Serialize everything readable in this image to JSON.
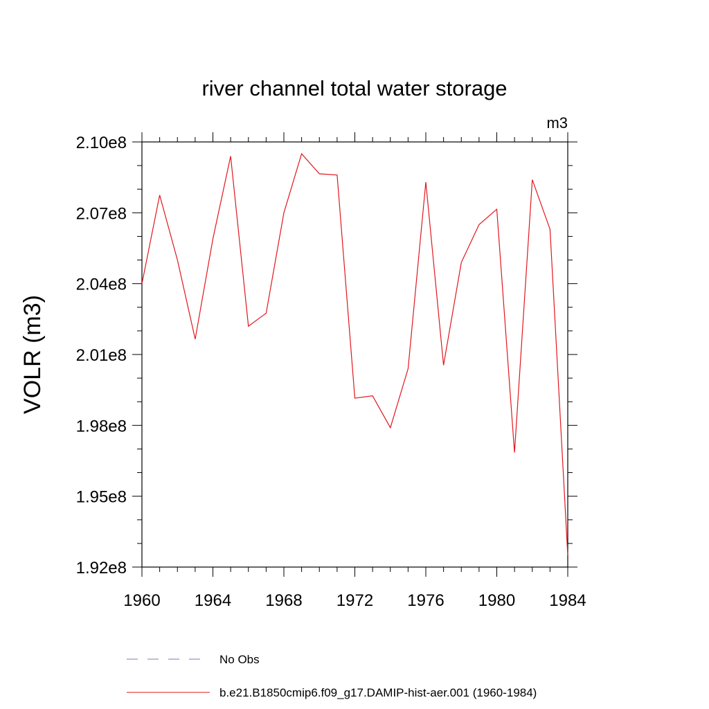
{
  "chart_data": {
    "type": "line",
    "title": "river channel total water storage",
    "units": "m3",
    "ylabel": "VOLR  (m3)",
    "xlim": [
      1960,
      1984
    ],
    "ylim": [
      192000000,
      210000000
    ],
    "x_ticks": [
      1960,
      1964,
      1968,
      1972,
      1976,
      1980,
      1984
    ],
    "x_tick_labels": [
      "1960",
      "1964",
      "1968",
      "1972",
      "1976",
      "1980",
      "1984"
    ],
    "y_ticks": [
      192000000,
      195000000,
      198000000,
      201000000,
      204000000,
      207000000,
      210000000
    ],
    "y_tick_labels": [
      "1.92e8",
      "1.95e8",
      "1.98e8",
      "2.01e8",
      "2.04e8",
      "2.07e8",
      "2.10e8"
    ],
    "grid": false,
    "legend_position": "bottom",
    "series": [
      {
        "name": "b.e21.B1850cmip6.f09_g17.DAMIP-hist-aer.001 (1960-1984)",
        "color": "#e0161d",
        "style": "solid",
        "x": [
          1960,
          1961,
          1962,
          1963,
          1964,
          1965,
          1966,
          1967,
          1968,
          1969,
          1970,
          1971,
          1972,
          1973,
          1974,
          1975,
          1976,
          1977,
          1978,
          1979,
          1980,
          1981,
          1982,
          1983,
          1984
        ],
        "values": [
          204000000,
          207750000,
          205000000,
          201650000,
          205900000,
          209400000,
          202200000,
          202750000,
          207000000,
          209500000,
          208650000,
          208600000,
          199150000,
          199250000,
          197900000,
          200400000,
          208300000,
          200550000,
          204900000,
          206500000,
          207150000,
          196850000,
          208400000,
          206300000,
          192500000
        ]
      },
      {
        "name": "No Obs",
        "color": "#7d7ab8",
        "style": "dashed",
        "x": [],
        "values": []
      }
    ]
  }
}
